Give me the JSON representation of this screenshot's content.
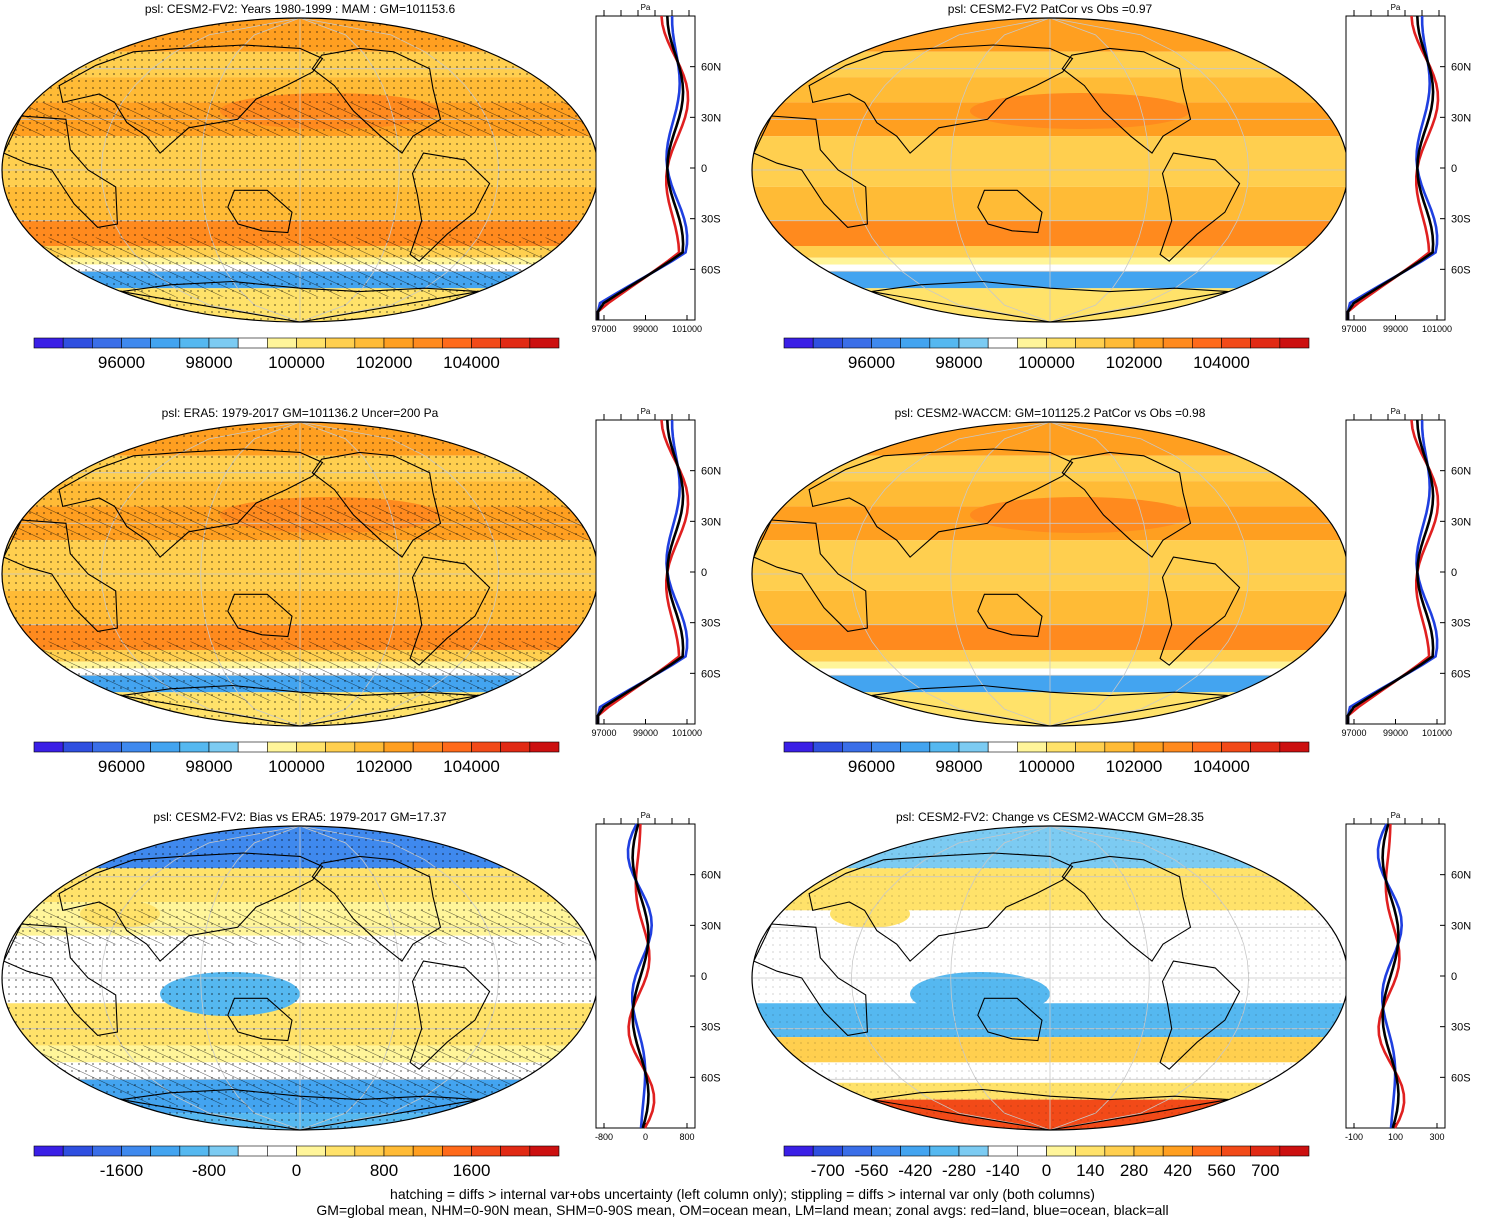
{
  "palettes": {
    "abs": [
      "#3a1fe6",
      "#2f4fe0",
      "#3a6ee8",
      "#3f89ee",
      "#43a4f0",
      "#55b8f0",
      "#7ccbf2",
      "#ffffff",
      "#fff59a",
      "#ffe26a",
      "#ffcf4f",
      "#ffbb36",
      "#ff9f20",
      "#ff8a1e",
      "#ff6a1a",
      "#f24a18",
      "#e12a14",
      "#cc1010"
    ],
    "diff": [
      "#3a1fe6",
      "#2f4fe0",
      "#3a6ee8",
      "#3f89ee",
      "#43a4f0",
      "#55b8f0",
      "#7ccbf2",
      "#ffffff",
      "#ffffff",
      "#fff59a",
      "#ffe26a",
      "#ffcf4f",
      "#ffbb36",
      "#ff9f20",
      "#ff6a1a",
      "#f24a18",
      "#e12a14",
      "#cc1010"
    ]
  },
  "zonal_lat_labels": [
    "60N",
    "30N",
    "0",
    "30S",
    "60S"
  ],
  "panels": [
    {
      "id": "cesm2-fv2-abs",
      "title": "psl: CESM2-FV2: Years 1980-1999 : MAM : GM=101153.6",
      "kind": "abs",
      "hatching": true,
      "stippling": true,
      "zonal_unit": "Pa",
      "zonal_ticks": [
        "97000",
        "99000",
        "101000"
      ],
      "colorbar_labels": [
        "96000",
        "98000",
        "100000",
        "102000",
        "104000"
      ]
    },
    {
      "id": "cesm2-fv2-patcor",
      "title": "psl: CESM2-FV2 PatCor vs Obs =0.97",
      "kind": "abs",
      "hatching": false,
      "stippling": false,
      "zonal_unit": "Pa",
      "zonal_ticks": [
        "97000",
        "99000",
        "101000"
      ],
      "colorbar_labels": [
        "96000",
        "98000",
        "100000",
        "102000",
        "104000"
      ]
    },
    {
      "id": "era5-abs",
      "title": "psl: ERA5: 1979-2017 GM=101136.2 Uncer=200 Pa",
      "kind": "abs",
      "hatching": true,
      "stippling": true,
      "zonal_unit": "Pa",
      "zonal_ticks": [
        "97000",
        "99000",
        "101000"
      ],
      "colorbar_labels": [
        "96000",
        "98000",
        "100000",
        "102000",
        "104000"
      ]
    },
    {
      "id": "cesm2-waccm-abs",
      "title": "psl: CESM2-WACCM: GM=101125.2 PatCor vs Obs =0.98",
      "kind": "abs",
      "hatching": false,
      "stippling": false,
      "zonal_unit": "Pa",
      "zonal_ticks": [
        "97000",
        "99000",
        "101000"
      ],
      "colorbar_labels": [
        "96000",
        "98000",
        "100000",
        "102000",
        "104000"
      ]
    },
    {
      "id": "cesm2-fv2-bias",
      "title": "psl: CESM2-FV2: Bias vs ERA5: 1979-2017 GM=17.37",
      "kind": "bias",
      "hatching": true,
      "stippling": true,
      "zonal_unit": "Pa",
      "zonal_ticks": [
        "-800",
        "0",
        "800"
      ],
      "colorbar_labels": [
        "-1600",
        "-800",
        "0",
        "800",
        "1600"
      ]
    },
    {
      "id": "cesm2-fv2-change",
      "title": "psl: CESM2-FV2: Change vs CESM2-WACCM GM=28.35",
      "kind": "change",
      "hatching": false,
      "stippling": true,
      "zonal_unit": "Pa",
      "zonal_ticks": [
        "-100",
        "100",
        "300"
      ],
      "colorbar_labels": [
        "-700",
        "-560",
        "-420",
        "-280",
        "-140",
        "0",
        "140",
        "280",
        "420",
        "560",
        "700"
      ]
    }
  ],
  "footer": {
    "line1": "hatching = diffs > internal var+obs uncertainty (left column only); stippling = diffs > internal var only (both columns)",
    "line2": "GM=global mean, NHM=0-90N mean, SHM=0-90S mean, OM=ocean mean, LM=land mean; zonal avgs: red=land, blue=ocean, black=all"
  }
}
